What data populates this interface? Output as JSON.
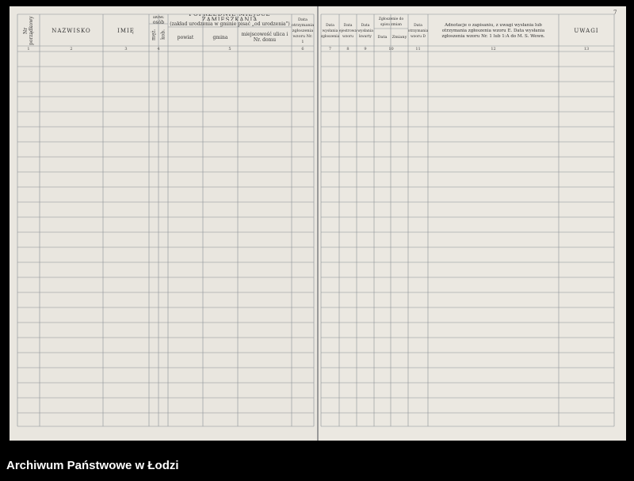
{
  "page_number": "7",
  "left_page": {
    "headers": {
      "nr": "Nr porządkowy",
      "surname": "NAZWISKO",
      "first_name": "IMIĘ",
      "persons": "Ilość osób",
      "men": "męż.",
      "women": "kob.",
      "previous_residence": "POPRZEDNIE MIEJSCE ZAMIESZKANIA",
      "previous_residence_note": "(zakład urodzenia w gminie pisać „od urodzenia\")",
      "county": "powiat",
      "commune": "gmina",
      "locality": "miejscowość ulica i Nr. domu",
      "date_received": "Data otrzymania zgłoszenia wzoru Nr. 1"
    },
    "column_numbers": [
      "1",
      "2",
      "3",
      "4",
      "5",
      "6"
    ]
  },
  "right_page": {
    "headers": {
      "date_sent": "Data wysłania zgłoszenia",
      "date_registered": "Data zarejestrowania wzoru",
      "date_card": "Data wysłania kwarty",
      "report": "Zgłoszenie do spisu zmian",
      "date": "Data",
      "changes": "Zmiany",
      "date_d": "Data otrzymania wzoru D",
      "annotations": "Adnotacje o zapisaniu, z uwagi wysłania lub otrzymania zgłoszenia wzoru E. Data wysłania zgłoszenia wzoru Nr. 1 lub 1:A do M. S. Wewn.",
      "remarks": "UWAGI"
    },
    "column_numbers": [
      "7",
      "8",
      "9",
      "10",
      "11",
      "12",
      "13"
    ]
  },
  "footer": {
    "text": "Archiwum Państwowe w Łodzi"
  }
}
